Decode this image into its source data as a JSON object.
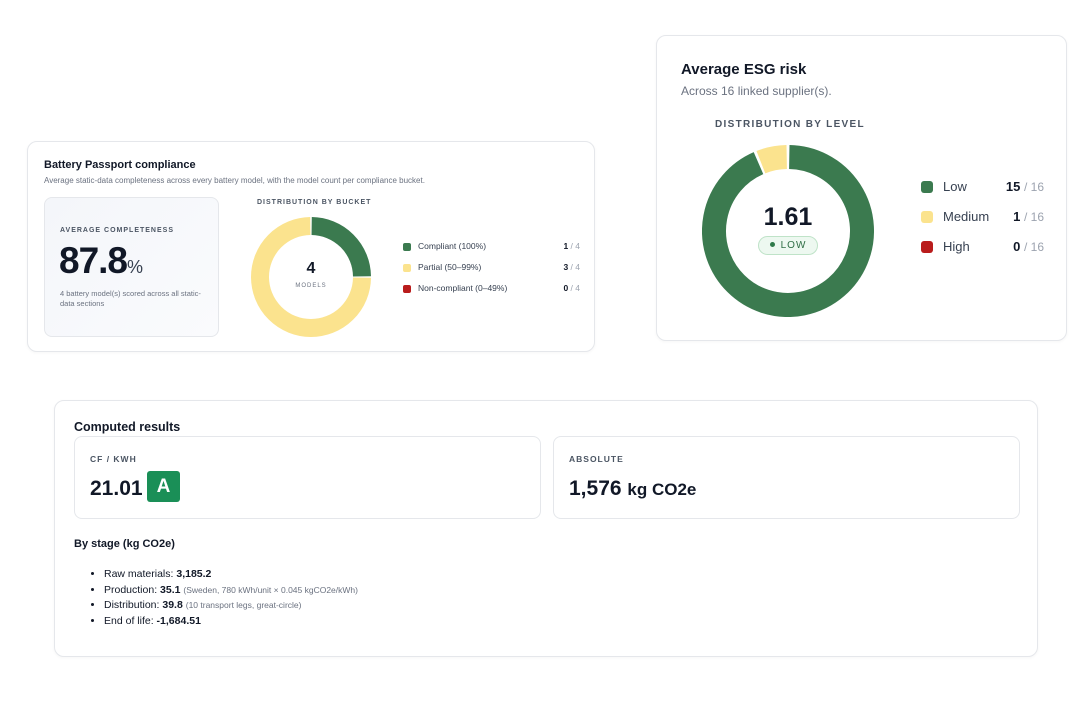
{
  "battery_passport": {
    "title": "Battery Passport compliance",
    "subtitle": "Average static-data completeness across every battery model, with the model count per compliance bucket.",
    "average_label": "AVERAGE COMPLETENESS",
    "average_value": "87.8",
    "average_unit": "%",
    "average_note": "4 battery model(s) scored across all static-data sections",
    "distribution_label": "DISTRIBUTION BY BUCKET",
    "center_value": "4",
    "center_label": "MODELS",
    "buckets": [
      {
        "label": "Compliant (100%)",
        "count": "1",
        "total": "/ 4",
        "value": 1,
        "color": "#3b7a4f"
      },
      {
        "label": "Partial (50–99%)",
        "count": "3",
        "total": "/ 4",
        "value": 3,
        "color": "#fbe38e"
      },
      {
        "label": "Non-compliant (0–49%)",
        "count": "0",
        "total": "/ 4",
        "value": 0,
        "color": "#b91c1c"
      }
    ]
  },
  "esg_risk": {
    "title": "Average ESG risk",
    "subtitle": "Across 16 linked supplier(s).",
    "distribution_label": "DISTRIBUTION BY LEVEL",
    "center_value": "1.61",
    "level_badge": "LOW",
    "levels": [
      {
        "label": "Low",
        "count": "15",
        "total": "/ 16",
        "value": 15,
        "color": "#3b7a4f"
      },
      {
        "label": "Medium",
        "count": "1",
        "total": "/ 16",
        "value": 1,
        "color": "#fbe38e"
      },
      {
        "label": "High",
        "count": "0",
        "total": "/ 16",
        "value": 0,
        "color": "#b91c1c"
      }
    ]
  },
  "computed_results": {
    "title": "Computed results",
    "cf_label": "CF / KWH",
    "cf_value": "21.01",
    "cf_grade": "A",
    "absolute_label": "ABSOLUTE",
    "absolute_value": "1,576",
    "absolute_unit": "kg CO2e",
    "by_stage_title": "By stage (kg CO2e)",
    "stages": [
      {
        "label": "Raw materials:",
        "value": "3,185.2",
        "note": ""
      },
      {
        "label": "Production:",
        "value": "35.1",
        "note": "(Sweden, 780 kWh/unit × 0.045 kgCO2e/kWh)"
      },
      {
        "label": "Distribution:",
        "value": "39.8",
        "note": "(10 transport legs, great-circle)"
      },
      {
        "label": "End of life:",
        "value": "-1,684.51",
        "note": ""
      }
    ]
  }
}
